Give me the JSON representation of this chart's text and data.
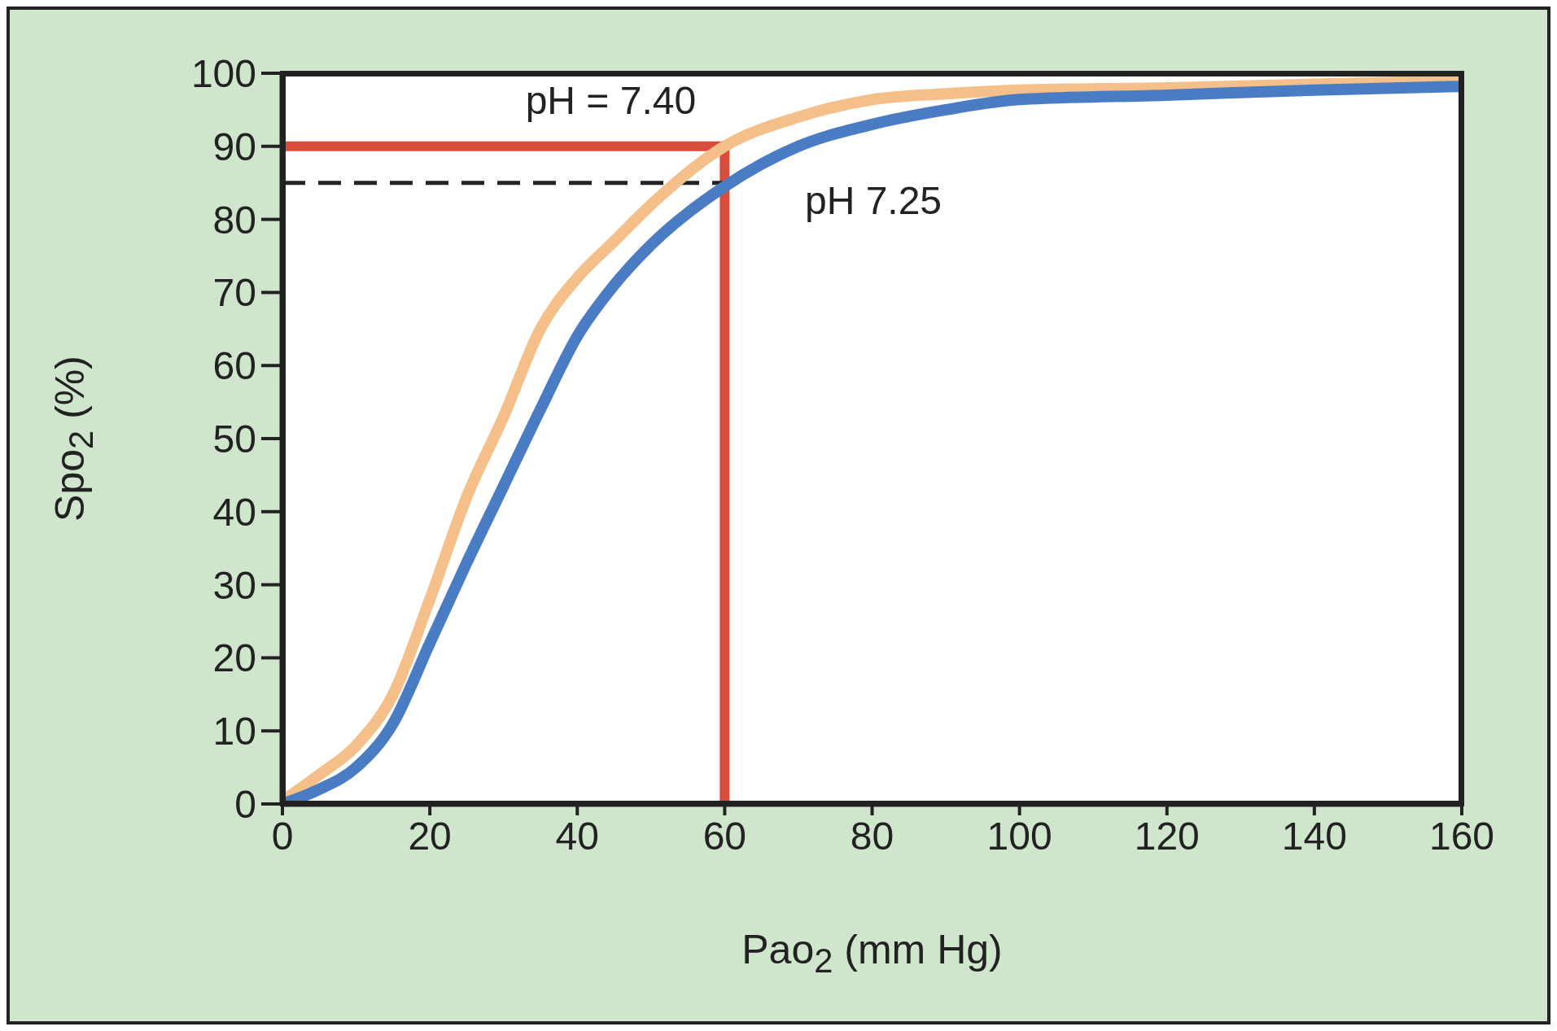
{
  "chart_data": {
    "type": "line",
    "xlabel": "Pao$_{2}$ (mm Hg)",
    "ylabel": "Spo$_{2}$ (%)",
    "x": [
      0,
      5,
      10,
      15,
      20,
      25,
      30,
      35,
      40,
      45,
      50,
      60,
      70,
      80,
      90,
      100,
      120,
      140,
      160
    ],
    "series": [
      {
        "name": "pH = 7.40",
        "color": "#f5bf8a",
        "values": [
          0.4,
          4,
          8,
          15,
          28,
          42,
          53,
          65,
          72,
          77,
          82,
          90,
          94,
          96.4,
          97.2,
          97.7,
          98,
          98.5,
          99
        ]
      },
      {
        "name": "pH 7.25",
        "color": "#4a7cc4",
        "values": [
          0,
          2,
          5,
          11,
          22,
          33,
          43.5,
          54,
          64,
          71,
          76.5,
          84.5,
          90,
          93,
          95,
          96.4,
          97,
          97.7,
          98.2
        ]
      }
    ],
    "xlim": [
      0,
      160
    ],
    "xticks": [
      0,
      20,
      40,
      60,
      80,
      100,
      120,
      140,
      160
    ],
    "ylim": [
      0,
      100
    ],
    "yticks": [
      0,
      10,
      20,
      30,
      40,
      50,
      60,
      70,
      80,
      90,
      100
    ],
    "grid": false,
    "legend": false,
    "marker": "none",
    "line_style": "solid",
    "ref_lines": [
      {
        "axis": "y",
        "value": 90,
        "color": "#d94b3a",
        "line_style": "solid"
      },
      {
        "axis": "x",
        "value": 60,
        "color": "#d94b3a",
        "line_style": "solid"
      },
      {
        "axis": "y",
        "value": 85,
        "color": "#222222",
        "line_style": "dashed"
      }
    ]
  }
}
